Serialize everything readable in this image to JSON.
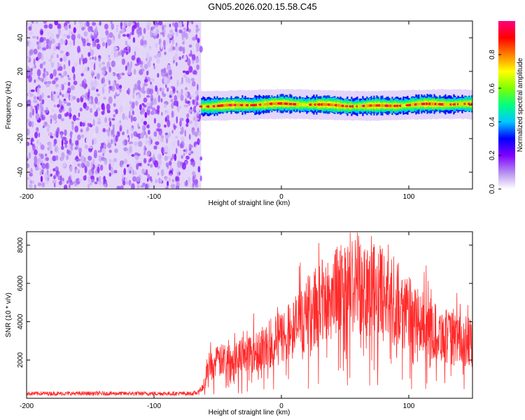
{
  "title": "GN05.2026.020.15.58.C45",
  "chart_data": [
    {
      "type": "heatmap",
      "title": "GN05.2026.020.15.58.C45",
      "xlabel": "Height of straight line (km)",
      "ylabel": "Frequency (Hz)",
      "xlim": [
        -200,
        150
      ],
      "ylim": [
        -50,
        50
      ],
      "xticks": [
        -200,
        -100,
        0,
        100
      ],
      "yticks": [
        -40,
        -20,
        0,
        20,
        40
      ],
      "noise_region_x": [
        -200,
        -63
      ],
      "signal_band_center_hz": 0,
      "signal_band_halfwidth_hz": 4,
      "colorbar": {
        "label": "Normalized spectral amplitude",
        "range": [
          0.0,
          1.0
        ],
        "ticks": [
          "0.0",
          "0.2",
          "0.4",
          "0.6",
          "0.8"
        ],
        "colors": [
          "#ffffff",
          "#b48cf0",
          "#8000ff",
          "#0000ff",
          "#00c8ff",
          "#00ff80",
          "#80ff00",
          "#ffff00",
          "#ff8000",
          "#ff0000",
          "#ff0080"
        ]
      }
    },
    {
      "type": "line",
      "xlabel": "Height of straight line (km)",
      "ylabel": "SNR (10 * v/v)",
      "xlim": [
        -200,
        150
      ],
      "ylim": [
        0,
        8700
      ],
      "xticks": [
        -200,
        -100,
        0,
        100
      ],
      "yticks": [
        2000,
        4000,
        6000,
        8000
      ],
      "series": [
        {
          "name": "SNR",
          "color": "#ff2a2a",
          "envelope_x": [
            -200,
            -150,
            -100,
            -70,
            -65,
            -60,
            -58,
            -50,
            -40,
            -30,
            -20,
            -10,
            0,
            10,
            20,
            30,
            40,
            50,
            60,
            65,
            70,
            80,
            90,
            100,
            110,
            120,
            130,
            140,
            150
          ],
          "envelope_y": [
            250,
            250,
            250,
            250,
            300,
            800,
            1600,
            1900,
            2100,
            2300,
            2500,
            2700,
            3200,
            3700,
            4300,
            4900,
            5400,
            5700,
            5900,
            6000,
            5800,
            5400,
            4900,
            4400,
            3900,
            3500,
            3200,
            3000,
            2900
          ]
        }
      ]
    }
  ]
}
